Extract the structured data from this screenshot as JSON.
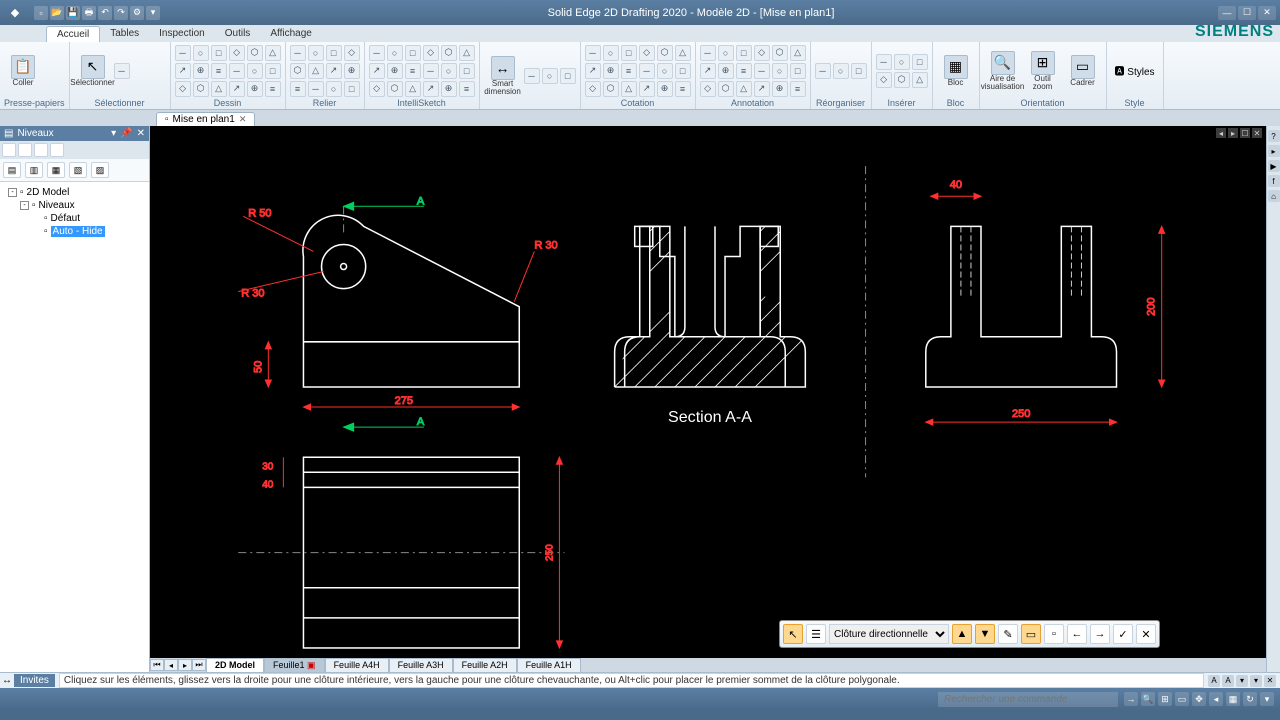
{
  "app": {
    "title": "Solid Edge 2D Drafting 2020 - Modèle 2D - [Mise en plan1]",
    "brand": "SIEMENS"
  },
  "tabs": {
    "items": [
      "Accueil",
      "Tables",
      "Inspection",
      "Outils",
      "Affichage"
    ],
    "active": 0
  },
  "ribbon": {
    "groups": [
      {
        "label": "Presse-papiers",
        "big": [
          {
            "icon": "📋",
            "txt": "Coller"
          }
        ]
      },
      {
        "label": "Sélectionner",
        "big": [
          {
            "icon": "↖",
            "txt": "Sélectionner"
          }
        ],
        "small": 1
      },
      {
        "label": "Dessin",
        "small": 18
      },
      {
        "label": "Relier",
        "small": 12
      },
      {
        "label": "IntelliSketch",
        "small": 18
      },
      {
        "label": "",
        "big": [
          {
            "icon": "↔",
            "txt": "Smart dimension"
          }
        ],
        "small": 3
      },
      {
        "label": "Cotation",
        "small": 18
      },
      {
        "label": "Annotation",
        "small": 18
      },
      {
        "label": "Réorganiser",
        "small": 3
      },
      {
        "label": "Insérer",
        "small": 6
      },
      {
        "label": "Bloc",
        "big": [
          {
            "icon": "▦",
            "txt": "Bloc"
          }
        ]
      },
      {
        "label": "Orientation",
        "big": [
          {
            "icon": "🔍",
            "txt": "Aire de visualisation"
          },
          {
            "icon": "⊞",
            "txt": "Outil zoom"
          },
          {
            "icon": "▭",
            "txt": "Cadrer"
          }
        ]
      },
      {
        "label": "Style",
        "text": "Styles"
      }
    ]
  },
  "doctab": {
    "label": "Mise en plan1"
  },
  "panel": {
    "title": "Niveaux",
    "tree": [
      {
        "lvl": 1,
        "exp": "-",
        "label": "2D Model"
      },
      {
        "lvl": 2,
        "exp": "-",
        "label": "Niveaux"
      },
      {
        "lvl": 3,
        "exp": "",
        "label": "Défaut"
      },
      {
        "lvl": 3,
        "exp": "",
        "label": "Auto - Hide",
        "sel": true
      }
    ]
  },
  "sheets": [
    "2D Model",
    "Feuille1",
    "Feuille A4H",
    "Feuille A3H",
    "Feuille A2H",
    "Feuille A1H"
  ],
  "floatbar": {
    "select": "Clôture directionnelle"
  },
  "prompt": {
    "tag": "Invites",
    "text": "Cliquez sur les éléments, glissez vers la droite pour une clôture intérieure, vers la gauche pour une clôture chevauchante, ou Alt+clic pour placer le premier sommet de la clôture polygonale."
  },
  "status": {
    "search": "Rechercher une commande"
  },
  "drawing": {
    "colors": {
      "line": "#ffffff",
      "dim": "#ff3030",
      "section": "#00d060",
      "text": "#ffffff",
      "centerline": "#888888"
    },
    "section_label": "Section A-A",
    "dims": {
      "d275": "275",
      "d50": "50",
      "d250_r": "250",
      "d200": "200",
      "d40t": "40",
      "d250_b": "250",
      "d30": "30",
      "d40": "40",
      "r50": "R 50",
      "r30a": "R 30",
      "r30b": "R 30",
      "a1": "A",
      "a2": "A"
    }
  }
}
